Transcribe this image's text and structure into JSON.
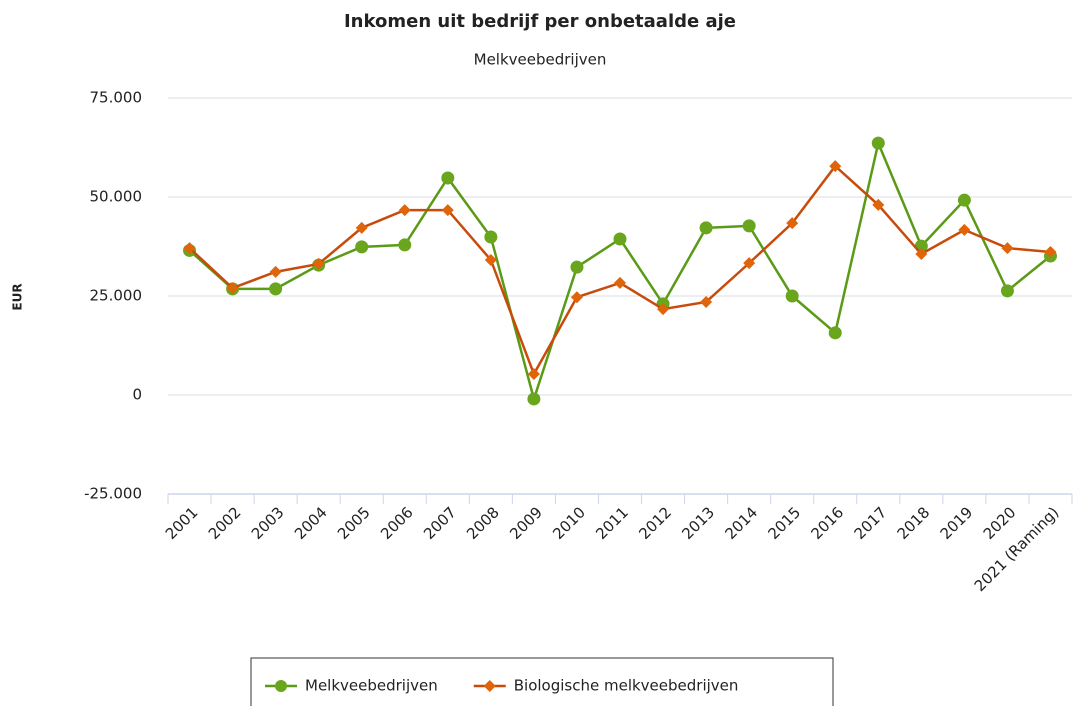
{
  "chart_data": {
    "type": "line",
    "title": "Inkomen uit bedrijf per onbetaalde aje",
    "subtitle": "Melkveebedrijven",
    "y_label": "EUR",
    "categories": [
      "2001",
      "2002",
      "2003",
      "2004",
      "2005",
      "2006",
      "2007",
      "2008",
      "2009",
      "2010",
      "2011",
      "2012",
      "2013",
      "2014",
      "2015",
      "2016",
      "2017",
      "2018",
      "2019",
      "2020",
      "2021 (Raming)"
    ],
    "series": [
      {
        "name": "Melkveebedrijven",
        "color": "#5a9a16",
        "marker": "circle",
        "values": [
          36500,
          26800,
          26800,
          32800,
          37400,
          37900,
          54800,
          39900,
          -1000,
          32300,
          39400,
          23000,
          42200,
          42700,
          25000,
          15700,
          63600,
          37600,
          49200,
          26300,
          35100
        ]
      },
      {
        "name": "Biologische melkveebedrijven",
        "color": "#c84b0c",
        "marker": "diamond",
        "values": [
          37100,
          27000,
          31100,
          33100,
          42200,
          46700,
          46700,
          34100,
          5300,
          24700,
          28300,
          21700,
          23500,
          33300,
          43400,
          57800,
          48000,
          35600,
          41700,
          37100,
          36100
        ]
      }
    ],
    "ylim": [
      -25000,
      75000
    ],
    "yticks": [
      {
        "value": -25000,
        "label": "-25.000"
      },
      0,
      {
        "value": 25000,
        "label": "25.000"
      },
      {
        "value": 50000,
        "label": "50.000"
      },
      {
        "value": 75000,
        "label": "75.000"
      }
    ],
    "grid": true,
    "legend": "bottom"
  }
}
